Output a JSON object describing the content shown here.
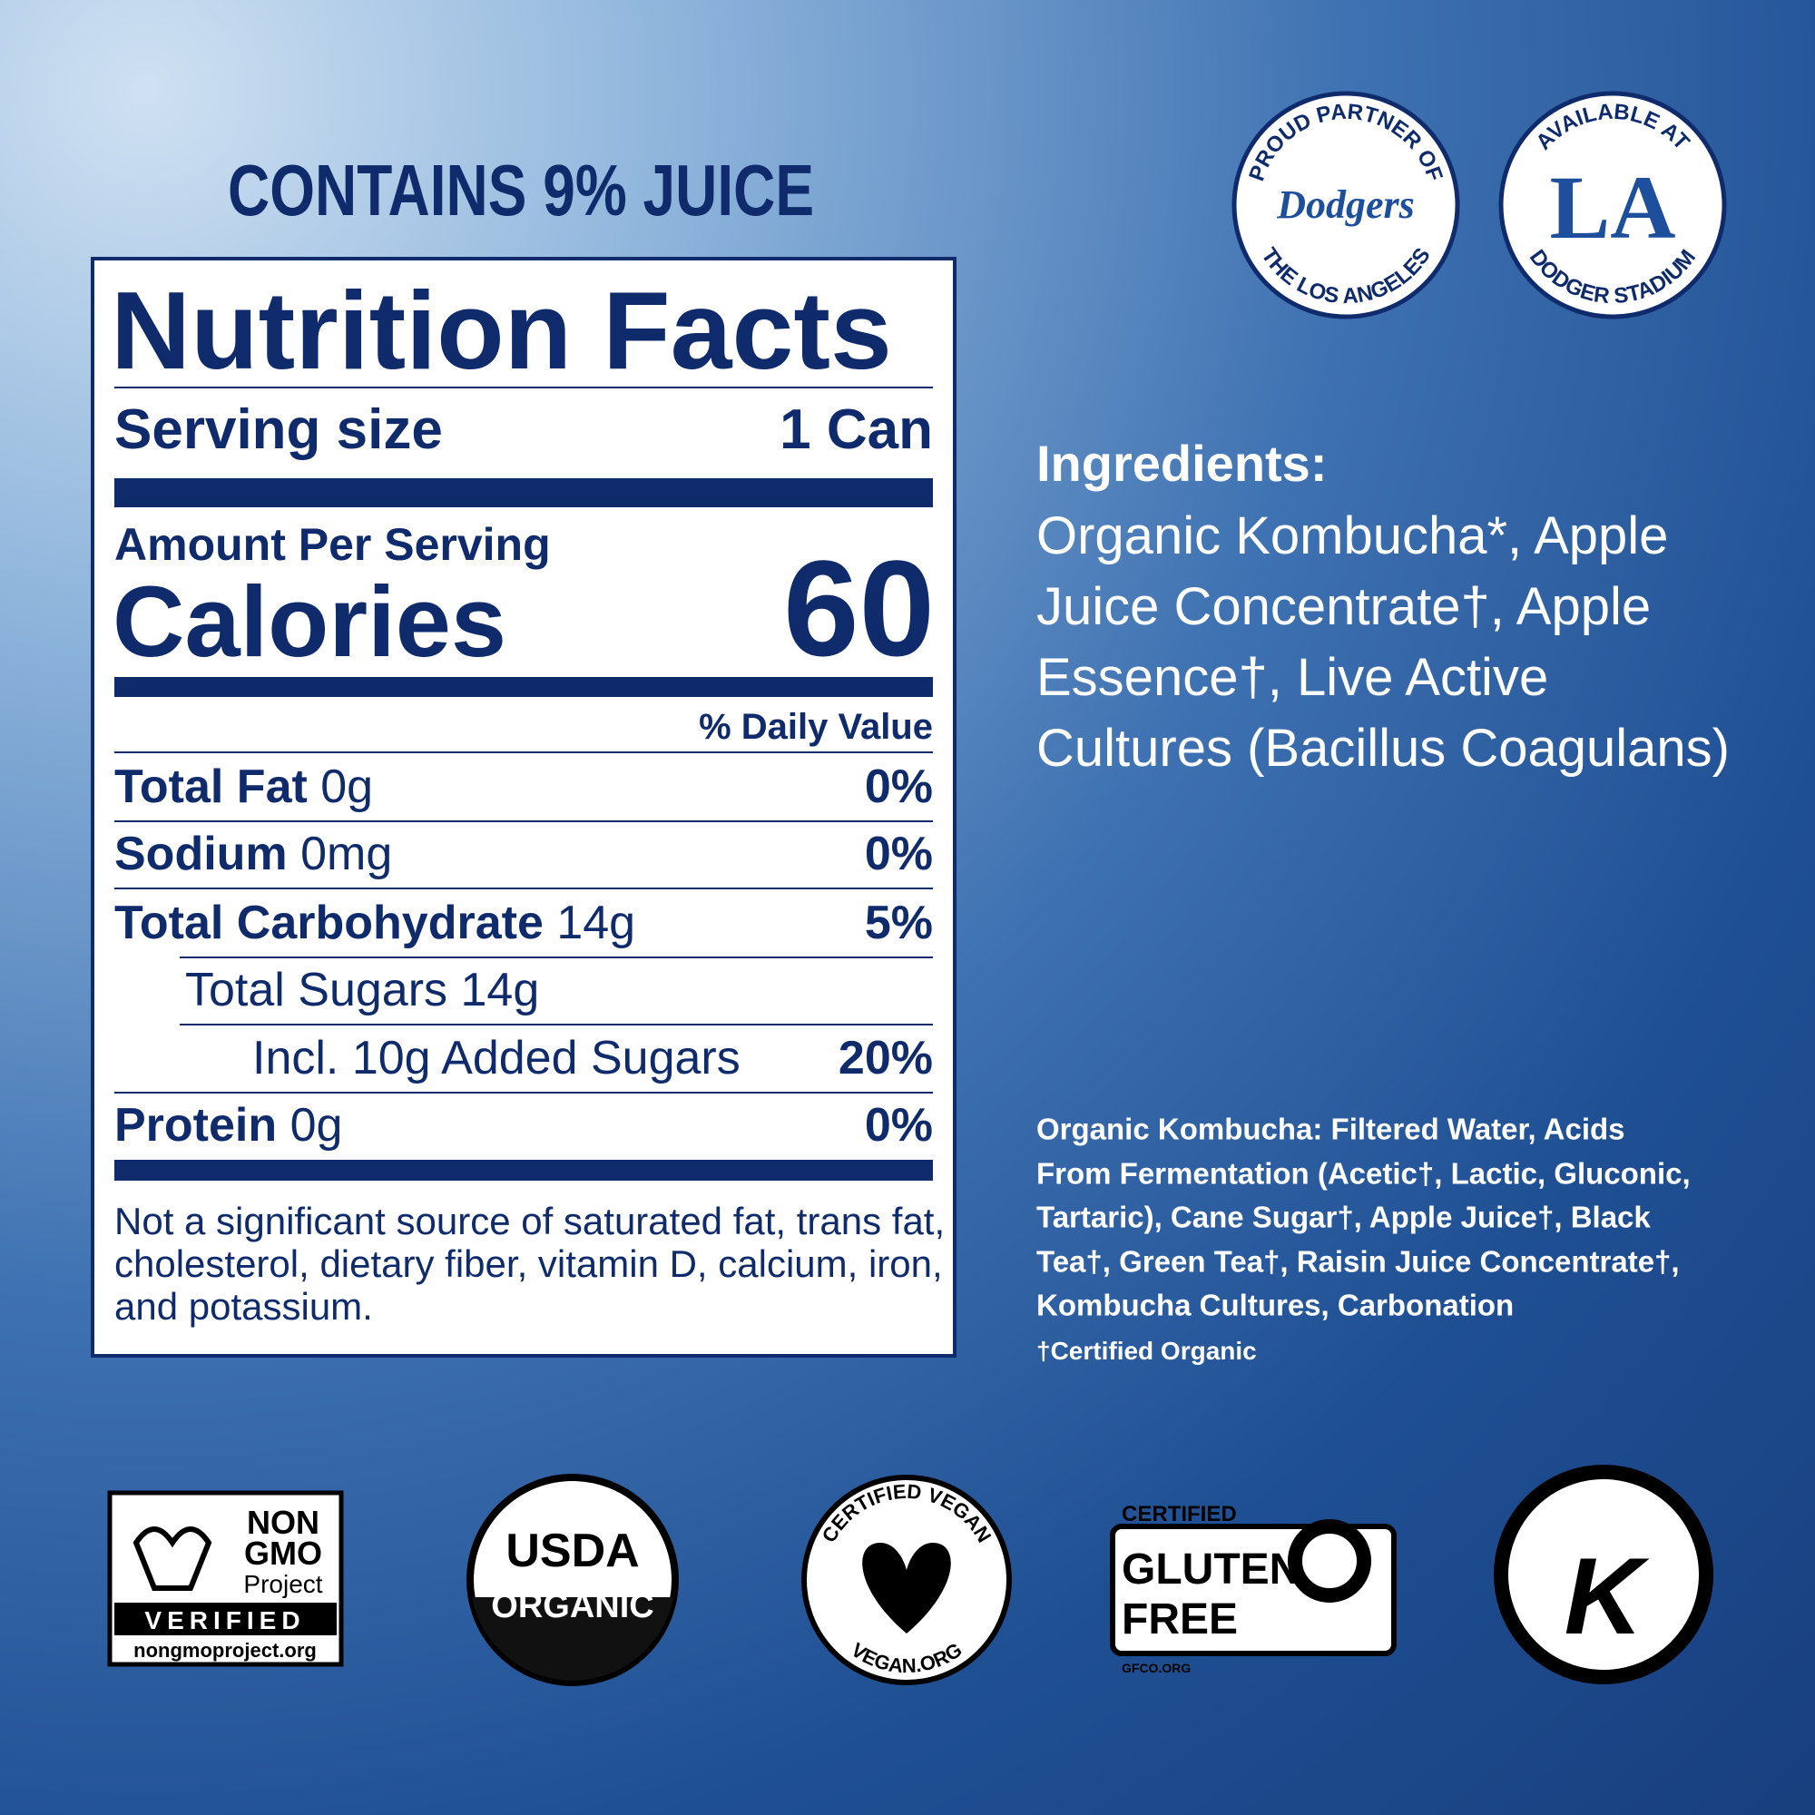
{
  "header": {
    "juice": "CONTAINS 9% JUICE"
  },
  "nutrition": {
    "title": "Nutrition Facts",
    "serving_label": "Serving size",
    "serving_value": "1 Can",
    "amount_per_serving": "Amount Per Serving",
    "calories_label": "Calories",
    "calories_value": "60",
    "daily_value_header": "% Daily Value",
    "rows": [
      {
        "name": "Total Fat",
        "amount": "0g",
        "dv": "0%"
      },
      {
        "name": "Sodium",
        "amount": "0mg",
        "dv": "0%"
      },
      {
        "name": "Total Carbohydrate",
        "amount": "14g",
        "dv": "5%"
      },
      {
        "amount": "Total Sugars 14g"
      },
      {
        "amount": "Incl. 10g Added Sugars",
        "dv": "20%"
      },
      {
        "name": "Protein",
        "amount": "0g",
        "dv": "0%"
      }
    ],
    "footnote": [
      "Not a significant source of saturated fat, trans fat,",
      "cholesterol, dietary fiber, vitamin D, calcium, iron,",
      "and potassium."
    ]
  },
  "ingredients": {
    "title": "Ingredients:",
    "lines": [
      "Organic Kombucha*, Apple",
      "Juice Concentrate†, Apple",
      "Essence†, Live Active",
      "Cultures (Bacillus Coagulans)"
    ],
    "kombucha_lines": [
      "Organic Kombucha: Filtered Water, Acids",
      "From Fermentation (Acetic†, Lactic, Gluconic,",
      "Tartaric), Cane Sugar†, Apple Juice†, Black",
      "Tea†, Green Tea†, Raisin Juice Concentrate†,",
      "Kombucha Cultures, Carbonation"
    ],
    "certified_note": "†Certified Organic"
  },
  "badges": {
    "dodgers": {
      "top": "PROUD PARTNER OF",
      "bottom": "THE LOS ANGELES",
      "logo": "Dodgers"
    },
    "stadium": {
      "top": "AVAILABLE AT",
      "bottom": "DODGER STADIUM",
      "logo": "LA"
    },
    "nongmo": {
      "line1": "NON",
      "line2": "GMO",
      "line3": "Project",
      "verified": "VERIFIED",
      "url": "nongmoproject.org"
    },
    "usda": {
      "top": "USDA",
      "bottom": "ORGANIC"
    },
    "vegan": {
      "top": "CERTIFIED VEGAN",
      "bottom": "VEGAN.ORG"
    },
    "gluten": {
      "certified": "CERTIFIED",
      "line1": "GLUTEN",
      "line2": "FREE",
      "url": "GFCO.ORG"
    },
    "kosher": {
      "logo": "K"
    }
  }
}
